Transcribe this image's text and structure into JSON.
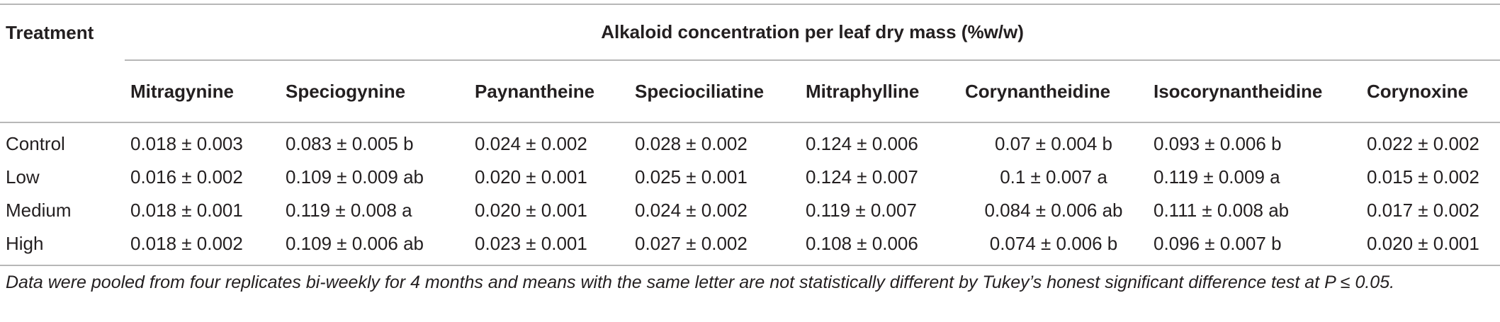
{
  "table": {
    "treatment_header": "Treatment",
    "span_header": "Alkaloid concentration per leaf dry mass (%w/w)",
    "columns": [
      "Mitragynine",
      "Speciogynine",
      "Paynantheine",
      "Speciociliatine",
      "Mitraphylline",
      "Corynantheidine",
      "Isocorynantheidine",
      "Corynoxine"
    ],
    "rows": [
      {
        "label": "Control",
        "cells": [
          "0.018 ± 0.003",
          "0.083 ± 0.005 b",
          "0.024 ± 0.002",
          "0.028 ± 0.002",
          "0.124 ± 0.006",
          "0.07 ± 0.004 b",
          "0.093 ± 0.006 b",
          "0.022 ± 0.002"
        ]
      },
      {
        "label": "Low",
        "cells": [
          "0.016 ± 0.002",
          "0.109 ± 0.009 ab",
          "0.020 ± 0.001",
          "0.025 ± 0.001",
          "0.124 ± 0.007",
          "0.1 ± 0.007 a",
          "0.119 ± 0.009 a",
          "0.015 ± 0.002"
        ]
      },
      {
        "label": "Medium",
        "cells": [
          "0.018 ± 0.001",
          "0.119 ± 0.008 a",
          "0.020 ± 0.001",
          "0.024 ± 0.002",
          "0.119 ± 0.007",
          "0.084 ± 0.006 ab",
          "0.111 ± 0.008 ab",
          "0.017 ± 0.002"
        ]
      },
      {
        "label": "High",
        "cells": [
          "0.018 ± 0.002",
          "0.109 ± 0.006 ab",
          "0.023 ± 0.001",
          "0.027 ± 0.002",
          "0.108 ± 0.006",
          "0.074 ± 0.006 b",
          "0.096 ± 0.007 b",
          "0.020 ± 0.001"
        ]
      }
    ],
    "footnote": "Data were pooled from four replicates bi-weekly for 4 months and means with the same letter are not statistically different by Tukey’s honest significant difference test at P ≤ 0.05."
  }
}
